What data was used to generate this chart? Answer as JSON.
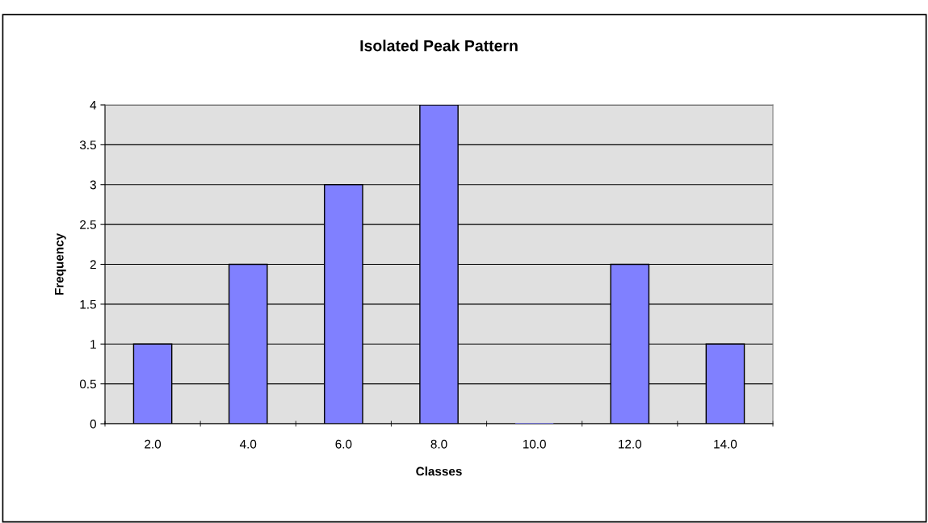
{
  "chart_data": {
    "type": "bar",
    "title": "Isolated Peak Pattern",
    "xlabel": "Classes",
    "ylabel": "Frequency",
    "categories": [
      "2.0",
      "4.0",
      "6.0",
      "8.0",
      "10.0",
      "12.0",
      "14.0"
    ],
    "values": [
      1,
      2,
      3,
      4,
      0,
      2,
      1
    ],
    "color": "#8080ff",
    "ylim": [
      0,
      4
    ],
    "yticks": [
      0,
      0.5,
      1,
      1.5,
      2,
      2.5,
      3,
      3.5,
      4
    ],
    "grid": "y"
  }
}
